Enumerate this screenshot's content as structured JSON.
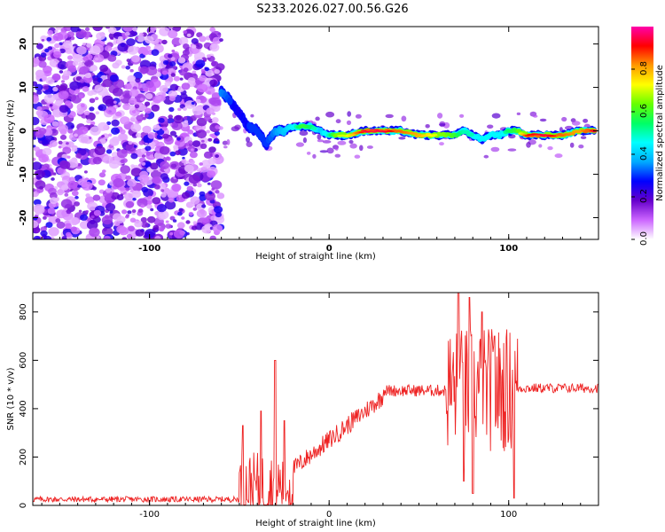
{
  "title": "S233.2026.027.00.56.G26",
  "chart_data": [
    {
      "type": "heatmap",
      "xlabel": "Height of straight line (km)",
      "ylabel": "Frequency (Hz)",
      "xlim": [
        -165,
        150
      ],
      "ylim": [
        -25,
        24
      ],
      "x_ticks": [
        "-100",
        "0",
        "100"
      ],
      "y_ticks": [
        "20",
        "10",
        "0",
        "-10",
        "-20"
      ],
      "colorbar": {
        "label": "Normalized spectral amplitude",
        "range": [
          0.0,
          1.0
        ],
        "ticks": [
          "0.0",
          "0.2",
          "0.4",
          "0.6",
          "0.8"
        ],
        "colors": [
          "#ffffff",
          "#cc66ff",
          "#6600cc",
          "#0000ff",
          "#00aaff",
          "#00ffff",
          "#00ff66",
          "#66ff00",
          "#ffff00",
          "#ff9900",
          "#ff0000",
          "#ff00aa"
        ]
      },
      "noise_region_x": [
        -165,
        -60
      ],
      "ridge": {
        "x": [
          -60,
          -55,
          -50,
          -45,
          -40,
          -35,
          -30,
          -25,
          -20,
          -15,
          -10,
          -5,
          0,
          5,
          10,
          20,
          30,
          40,
          50,
          60,
          70,
          75,
          80,
          85,
          90,
          95,
          100,
          105,
          110,
          120,
          130,
          140,
          148
        ],
        "freq": [
          9,
          7,
          4,
          1,
          0,
          -3,
          0,
          0,
          1,
          1,
          1,
          0,
          -1,
          -1,
          -1,
          0,
          0,
          0,
          -1,
          -1,
          -1,
          0,
          -1,
          -2,
          -1,
          -1,
          0,
          0,
          -1,
          -1,
          -1,
          0,
          0
        ],
        "amp": [
          0.35,
          0.3,
          0.25,
          0.3,
          0.3,
          0.3,
          0.35,
          0.4,
          0.45,
          0.6,
          0.55,
          0.4,
          0.5,
          0.7,
          0.7,
          0.95,
          0.95,
          0.85,
          0.8,
          0.7,
          0.6,
          0.5,
          0.5,
          0.45,
          0.5,
          0.45,
          0.55,
          0.6,
          0.9,
          0.95,
          0.85,
          0.8,
          0.95
        ]
      }
    },
    {
      "type": "line",
      "xlabel": "Height of straight line (km)",
      "ylabel": "SNR (10 * v/v)",
      "xlim": [
        -165,
        150
      ],
      "ylim": [
        0,
        880
      ],
      "x_ticks": [
        "-100",
        "0",
        "100"
      ],
      "y_ticks": [
        "0",
        "200",
        "400",
        "600",
        "800"
      ],
      "color": "#ee2222",
      "segments": [
        {
          "x_range": [
            -165,
            -50
          ],
          "base": 25,
          "noise": 12
        },
        {
          "x_range": [
            -50,
            -20
          ],
          "base": 80,
          "noise": 140,
          "spikes": [
            [
              -48,
              330
            ],
            [
              -38,
              390
            ],
            [
              -30,
              600
            ],
            [
              -25,
              350
            ]
          ]
        },
        {
          "x_range": [
            -20,
            30
          ],
          "base_start": 150,
          "base_end": 450,
          "noise": 40
        },
        {
          "x_range": [
            30,
            65
          ],
          "base": 475,
          "noise": 25
        },
        {
          "x_range": [
            65,
            105
          ],
          "base": 480,
          "noise": 260,
          "spikes": [
            [
              72,
              880
            ],
            [
              75,
              100
            ],
            [
              78,
              860
            ],
            [
              80,
              50
            ],
            [
              85,
              800
            ],
            [
              92,
              700
            ],
            [
              103,
              30
            ]
          ]
        },
        {
          "x_range": [
            105,
            150
          ],
          "base": 485,
          "noise": 20
        }
      ]
    }
  ]
}
